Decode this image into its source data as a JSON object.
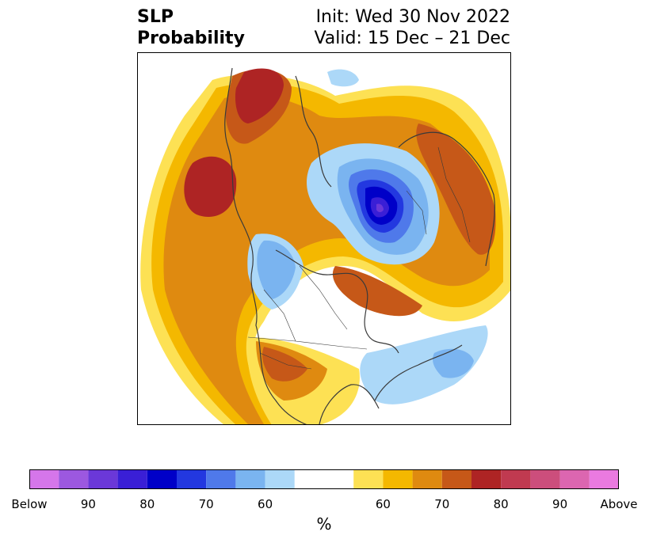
{
  "header": {
    "title_line1": "SLP",
    "title_line2": "Probability",
    "init_line": "Init: Wed 30 Nov 2022",
    "valid_line": "Valid: 15 Dec – 21 Dec"
  },
  "map": {
    "projection": "north-polar-stereographic",
    "variable": "sea-level-pressure-probability",
    "features": [
      "coastlines",
      "country-borders",
      "state-province-borders"
    ]
  },
  "colorbar": {
    "colors": [
      "#d576ea",
      "#9c58e0",
      "#6b38d8",
      "#3a1fd6",
      "#0000c8",
      "#2338e0",
      "#4f79ea",
      "#7ab4f0",
      "#acd8f8",
      "#ffffff",
      "#fde154",
      "#f4b800",
      "#df8a10",
      "#c65818",
      "#ae2424",
      "#c03a50",
      "#cc4e7c",
      "#dc66b0",
      "#ea7ae0"
    ],
    "ticks": [
      "Below",
      "90",
      "80",
      "70",
      "60",
      "60",
      "70",
      "80",
      "90",
      "Above"
    ],
    "unit": "%"
  }
}
